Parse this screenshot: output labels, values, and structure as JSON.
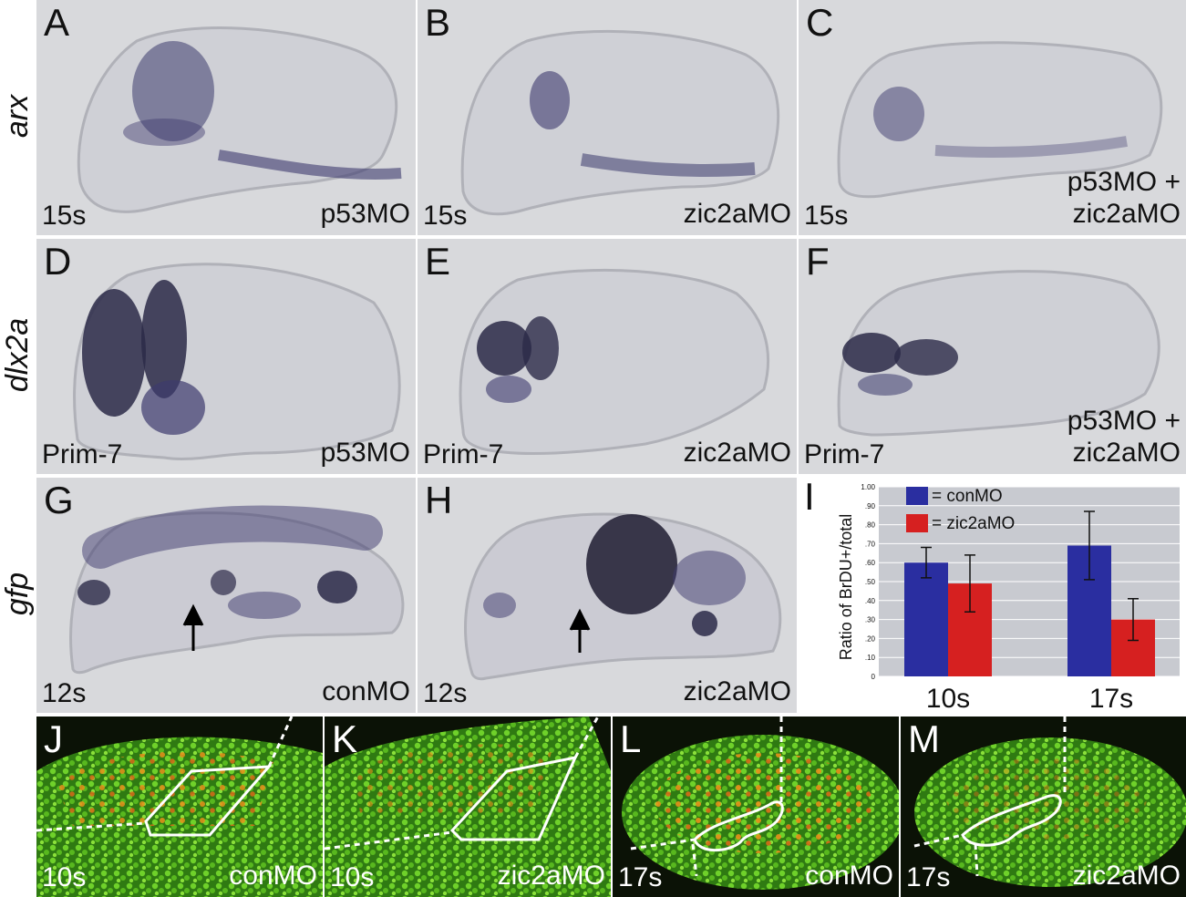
{
  "row_labels": {
    "row1": "arx",
    "row2": "dlx2a",
    "row3": "gfp"
  },
  "panels": [
    {
      "letter": "A",
      "stage": "15s",
      "treatment": [
        "p53MO"
      ]
    },
    {
      "letter": "B",
      "stage": "15s",
      "treatment": [
        "zic2aMO"
      ]
    },
    {
      "letter": "C",
      "stage": "15s",
      "treatment": [
        "p53MO +",
        "zic2aMO"
      ]
    },
    {
      "letter": "D",
      "stage": "Prim-7",
      "treatment": [
        "p53MO"
      ]
    },
    {
      "letter": "E",
      "stage": "Prim-7",
      "treatment": [
        "zic2aMO"
      ]
    },
    {
      "letter": "F",
      "stage": "Prim-7",
      "treatment": [
        "p53MO +",
        "zic2aMO"
      ]
    },
    {
      "letter": "G",
      "stage": "12s",
      "treatment": [
        "conMO"
      ]
    },
    {
      "letter": "H",
      "stage": "12s",
      "treatment": [
        "zic2aMO"
      ]
    },
    {
      "letter": "J",
      "stage": "10s",
      "treatment": [
        "conMO"
      ]
    },
    {
      "letter": "K",
      "stage": "10s",
      "treatment": [
        "zic2aMO"
      ]
    },
    {
      "letter": "L",
      "stage": "17s",
      "treatment": [
        "conMO"
      ]
    },
    {
      "letter": "M",
      "stage": "17s",
      "treatment": [
        "zic2aMO"
      ]
    }
  ],
  "colors": {
    "conMO": "#2a2ea0",
    "zic2aMO": "#d62020",
    "stain": "#3d3a6e",
    "plot_bg": "#c8cad0"
  },
  "chart_panel": {
    "letter": "I",
    "legend": [
      "= conMO",
      "= zic2aMO"
    ]
  },
  "chart_data": {
    "type": "bar",
    "categories": [
      "10s",
      "17s"
    ],
    "series": [
      {
        "name": "conMO",
        "values": [
          0.6,
          0.69
        ],
        "error": [
          0.08,
          0.18
        ]
      },
      {
        "name": "zic2aMO",
        "values": [
          0.49,
          0.3
        ],
        "error": [
          0.15,
          0.11
        ]
      }
    ],
    "ylabel": "Ratio of BrDU+/total",
    "ylim": [
      0,
      1.0
    ],
    "yticks": [
      "0",
      ".10",
      ".20",
      ".30",
      ".40",
      ".50",
      ".60",
      ".70",
      ".80",
      ".90",
      "1.00"
    ],
    "grid": true
  }
}
